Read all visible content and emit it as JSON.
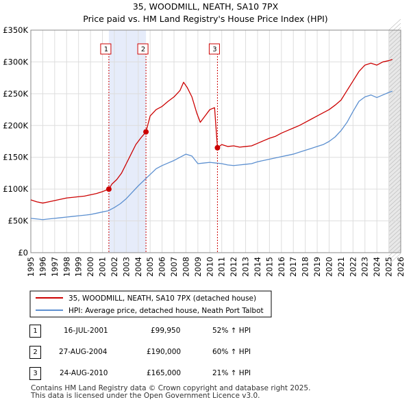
{
  "chart_data": {
    "type": "line",
    "title": "35, WOODMILL, NEATH, SA10 7PX",
    "subtitle": "Price paid vs. HM Land Registry's House Price Index (HPI)",
    "xlim": [
      1995,
      2026
    ],
    "ylim": [
      0,
      350000
    ],
    "xticks": [
      1995,
      1996,
      1997,
      1998,
      1999,
      2000,
      2001,
      2002,
      2003,
      2004,
      2005,
      2006,
      2007,
      2008,
      2009,
      2010,
      2011,
      2012,
      2013,
      2014,
      2015,
      2016,
      2017,
      2018,
      2019,
      2020,
      2021,
      2022,
      2023,
      2024,
      2025,
      2026
    ],
    "yticks": [
      {
        "value": 0,
        "label": "£0"
      },
      {
        "value": 50000,
        "label": "£50K"
      },
      {
        "value": 100000,
        "label": "£100K"
      },
      {
        "value": 150000,
        "label": "£150K"
      },
      {
        "value": 200000,
        "label": "£200K"
      },
      {
        "value": 250000,
        "label": "£250K"
      },
      {
        "value": 300000,
        "label": "£300K"
      },
      {
        "value": 350000,
        "label": "£350K"
      }
    ],
    "series": [
      {
        "name": "35, WOODMILL, NEATH, SA10 7PX (detached house)",
        "color": "#cc0000",
        "x": [
          1995.0,
          1995.5,
          1996.0,
          1996.5,
          1997.0,
          1997.5,
          1998.0,
          1998.5,
          1999.0,
          1999.5,
          2000.0,
          2000.5,
          2001.0,
          2001.54,
          2001.8,
          2002.2,
          2002.6,
          2003.0,
          2003.4,
          2003.8,
          2004.2,
          2004.65,
          2005.0,
          2005.5,
          2006.0,
          2006.5,
          2007.0,
          2007.5,
          2007.8,
          2008.1,
          2008.5,
          2008.9,
          2009.2,
          2009.6,
          2010.0,
          2010.4,
          2010.64,
          2011.0,
          2011.5,
          2012.0,
          2012.5,
          2013.0,
          2013.5,
          2014.0,
          2014.5,
          2015.0,
          2015.5,
          2016.0,
          2016.5,
          2017.0,
          2017.5,
          2018.0,
          2018.5,
          2019.0,
          2019.5,
          2020.0,
          2020.5,
          2021.0,
          2021.5,
          2022.0,
          2022.5,
          2023.0,
          2023.5,
          2024.0,
          2024.5,
          2025.0,
          2025.3
        ],
        "values": [
          83000,
          80000,
          78000,
          80000,
          82000,
          84000,
          86000,
          87000,
          88000,
          89000,
          91000,
          93000,
          96000,
          99950,
          108000,
          115000,
          125000,
          140000,
          155000,
          170000,
          180000,
          190000,
          215000,
          225000,
          230000,
          238000,
          245000,
          255000,
          268000,
          260000,
          245000,
          220000,
          205000,
          215000,
          225000,
          228000,
          165000,
          170000,
          167000,
          168000,
          166000,
          167000,
          168000,
          172000,
          176000,
          180000,
          183000,
          188000,
          192000,
          196000,
          200000,
          205000,
          210000,
          215000,
          220000,
          225000,
          232000,
          240000,
          255000,
          270000,
          285000,
          295000,
          298000,
          295000,
          300000,
          302000,
          304000
        ]
      },
      {
        "name": "HPI: Average price, detached house, Neath Port Talbot",
        "color": "#5b8fd0",
        "x": [
          1995.0,
          1995.5,
          1996.0,
          1996.5,
          1997.0,
          1997.5,
          1998.0,
          1998.5,
          1999.0,
          1999.5,
          2000.0,
          2000.5,
          2001.0,
          2001.5,
          2002.0,
          2002.5,
          2003.0,
          2003.5,
          2004.0,
          2004.5,
          2005.0,
          2005.5,
          2006.0,
          2006.5,
          2007.0,
          2007.5,
          2008.0,
          2008.5,
          2009.0,
          2009.5,
          2010.0,
          2010.5,
          2011.0,
          2011.5,
          2012.0,
          2012.5,
          2013.0,
          2013.5,
          2014.0,
          2014.5,
          2015.0,
          2015.5,
          2016.0,
          2016.5,
          2017.0,
          2017.5,
          2018.0,
          2018.5,
          2019.0,
          2019.5,
          2020.0,
          2020.5,
          2021.0,
          2021.5,
          2022.0,
          2022.5,
          2023.0,
          2023.5,
          2024.0,
          2024.5,
          2025.0,
          2025.3
        ],
        "values": [
          54000,
          53000,
          52000,
          53000,
          54000,
          55000,
          56000,
          57000,
          58000,
          59000,
          60000,
          62000,
          64000,
          66000,
          71000,
          77000,
          85000,
          95000,
          105000,
          114000,
          123000,
          132000,
          137000,
          141000,
          145000,
          150000,
          155000,
          152000,
          140000,
          141000,
          142000,
          141000,
          140000,
          138000,
          137000,
          138000,
          139000,
          140000,
          143000,
          145000,
          147000,
          149000,
          151000,
          153000,
          155000,
          158000,
          161000,
          164000,
          167000,
          170000,
          175000,
          182000,
          192000,
          205000,
          222000,
          238000,
          245000,
          248000,
          244000,
          248000,
          252000,
          254000
        ]
      }
    ],
    "sales": [
      {
        "marker": "1",
        "x": 2001.54,
        "value": 99950
      },
      {
        "marker": "2",
        "x": 2004.65,
        "value": 190000
      },
      {
        "marker": "3",
        "x": 2010.64,
        "value": 165000
      }
    ],
    "shaded_periods": [
      [
        2001.54,
        2004.65
      ],
      [
        2025.0,
        2026.0
      ]
    ]
  },
  "legend": {
    "property": "35, WOODMILL, NEATH, SA10 7PX (detached house)",
    "hpi": "HPI: Average price, detached house, Neath Port Talbot"
  },
  "transactions": [
    {
      "marker": "1",
      "date": "16-JUL-2001",
      "price": "£99,950",
      "hpi": "52% ↑ HPI"
    },
    {
      "marker": "2",
      "date": "27-AUG-2004",
      "price": "£190,000",
      "hpi": "60% ↑ HPI"
    },
    {
      "marker": "3",
      "date": "24-AUG-2010",
      "price": "£165,000",
      "hpi": "21% ↑ HPI"
    }
  ],
  "footer": {
    "line1": "Contains HM Land Registry data © Crown copyright and database right 2025.",
    "line2": "This data is licensed under the Open Government Licence v3.0."
  }
}
